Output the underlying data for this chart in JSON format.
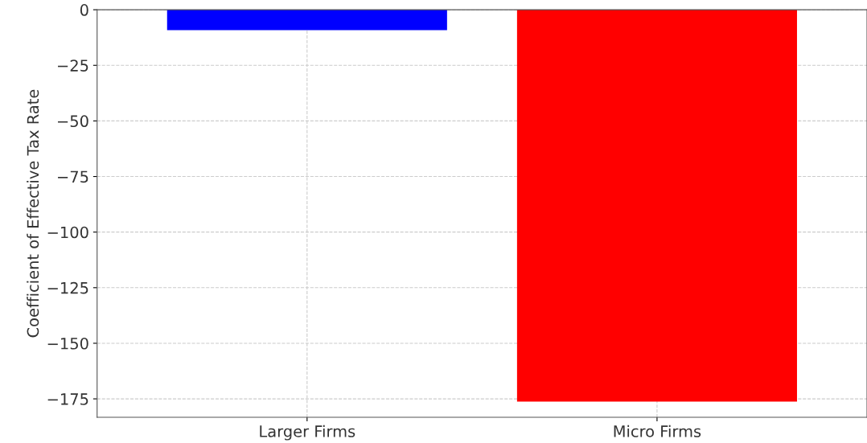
{
  "chart_data": {
    "type": "bar",
    "ylabel": "Coefficient of Effective Tax Rate",
    "categories": [
      "Larger Firms",
      "Micro Firms"
    ],
    "values": [
      -9.2,
      -176.2
    ],
    "colors": [
      "#0000ff",
      "#ff0000"
    ],
    "ylim": [
      -183.3,
      0
    ],
    "yticks": [
      0,
      -25,
      -50,
      -75,
      -100,
      -125,
      -150,
      -175
    ],
    "grid": true
  }
}
